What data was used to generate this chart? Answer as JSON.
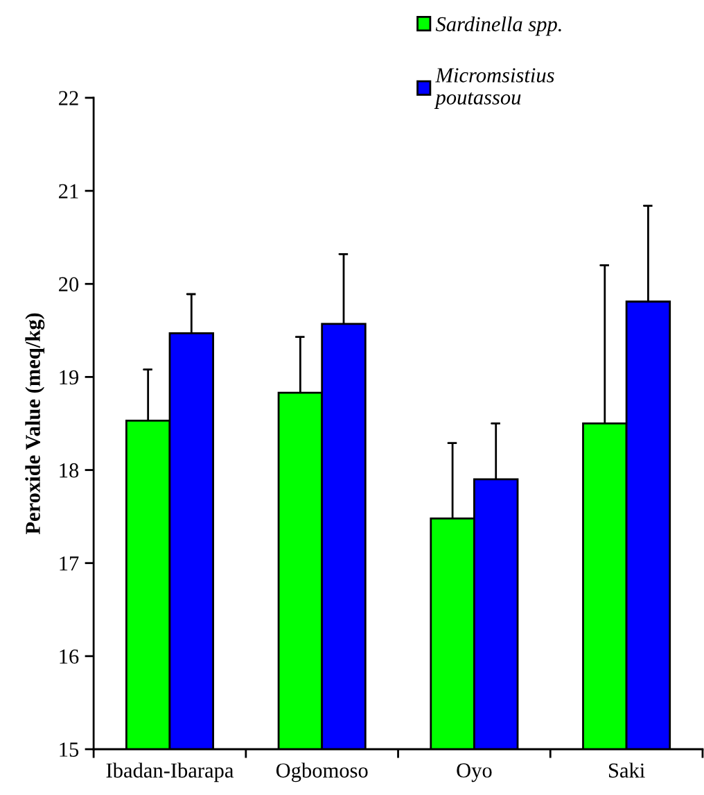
{
  "chart_data": {
    "type": "bar",
    "ylabel": "Peroxide Value (meq/kg)",
    "categories": [
      "Ibadan-Ibarapa",
      "Ogbomoso",
      "Oyo",
      "Saki"
    ],
    "series": [
      {
        "name": "Sardinella spp.",
        "color": "#00ff00",
        "values": [
          18.53,
          18.83,
          17.48,
          18.5
        ],
        "errors": [
          [
            18.53,
            19.08
          ],
          [
            18.83,
            19.43
          ],
          [
            17.48,
            18.29
          ],
          [
            18.5,
            20.2
          ]
        ]
      },
      {
        "name": "Micromsistius poutassou",
        "color": "#0000ff",
        "values": [
          19.47,
          19.57,
          17.9,
          19.81
        ],
        "errors": [
          [
            19.47,
            19.89
          ],
          [
            19.57,
            20.32
          ],
          [
            17.9,
            18.5
          ],
          [
            19.81,
            20.84
          ]
        ]
      }
    ],
    "ylim": [
      15,
      22
    ],
    "yticks": [
      15,
      16,
      17,
      18,
      19,
      20,
      21,
      22
    ],
    "legend": "top right"
  }
}
